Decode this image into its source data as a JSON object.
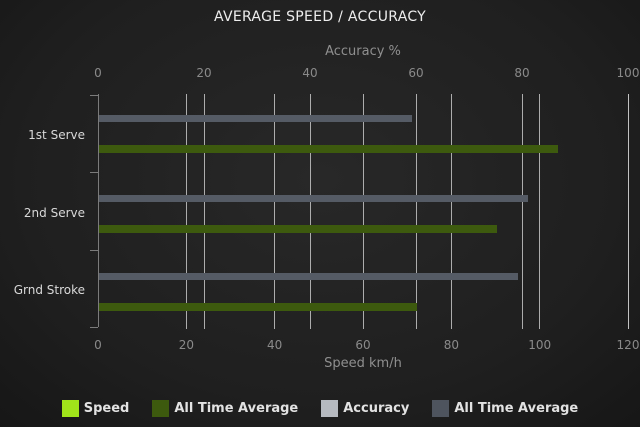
{
  "page": {
    "title": "AVERAGE SPEED / ACCURACY"
  },
  "chart_data": {
    "type": "bar",
    "orientation": "horizontal",
    "title": "AVERAGE SPEED / ACCURACY",
    "categories": [
      "1st Serve",
      "2nd Serve",
      "Grnd Stroke"
    ],
    "axes": {
      "top": {
        "label": "Accuracy %",
        "ticks": [
          0,
          20,
          40,
          60,
          80,
          100
        ],
        "range": [
          0,
          100
        ]
      },
      "bottom": {
        "label": "Speed km/h",
        "ticks": [
          0,
          20,
          40,
          60,
          80,
          100,
          120
        ],
        "range": [
          0,
          120
        ]
      }
    },
    "series": [
      {
        "name": "Speed",
        "axis": "bottom",
        "color": "#a0e41a",
        "values": [
          null,
          null,
          null
        ]
      },
      {
        "name": "All Time Average",
        "axis": "bottom",
        "color": "#3d5a0e",
        "values": [
          104,
          90,
          72
        ]
      },
      {
        "name": "Accuracy",
        "axis": "top",
        "color": "#b6bac0",
        "values": [
          null,
          null,
          null
        ]
      },
      {
        "name": "All Time Average",
        "axis": "top",
        "color": "#4e545e",
        "values": [
          59,
          81,
          79
        ]
      }
    ],
    "legend_position": "bottom",
    "grid": true
  },
  "colors": {
    "background_center": "#282828",
    "background_edge": "#121212",
    "gridline": "#c6c6c6",
    "axis_line": "#7b7b7b",
    "tick_label": "#8a8a8a",
    "axis_title": "#8f8f8f",
    "category_label": "#d9d9d9",
    "title_text": "#ededed",
    "legend_text": "#e2e2e2",
    "bar_speed_avg": "#3d5a0e",
    "bar_accuracy_avg": "#555b65"
  }
}
